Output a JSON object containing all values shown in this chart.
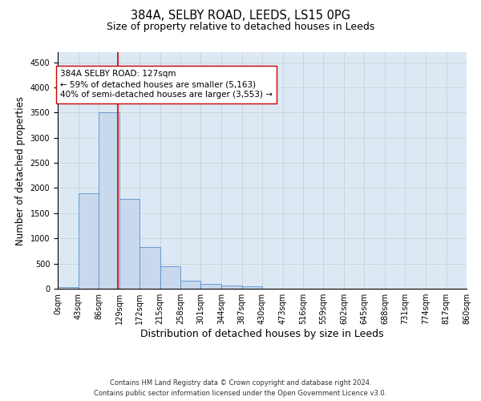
{
  "title_line1": "384A, SELBY ROAD, LEEDS, LS15 0PG",
  "title_line2": "Size of property relative to detached houses in Leeds",
  "xlabel": "Distribution of detached houses by size in Leeds",
  "ylabel": "Number of detached properties",
  "bin_edges": [
    0,
    43,
    86,
    129,
    172,
    215,
    258,
    301,
    344,
    387,
    430,
    473,
    516,
    559,
    602,
    645,
    688,
    731,
    774,
    817,
    860
  ],
  "bar_heights": [
    30,
    1900,
    3500,
    1780,
    830,
    450,
    165,
    100,
    65,
    50,
    0,
    0,
    0,
    0,
    0,
    0,
    0,
    0,
    0,
    0
  ],
  "bar_color": "#c8d9ed",
  "bar_edge_color": "#5b8fc9",
  "subject_size": 127,
  "subject_line_color": "#cc0000",
  "annotation_text": "384A SELBY ROAD: 127sqm\n← 59% of detached houses are smaller (5,163)\n40% of semi-detached houses are larger (3,553) →",
  "annotation_box_color": "#ffffff",
  "annotation_box_edge": "#cc0000",
  "ylim": [
    0,
    4700
  ],
  "yticks": [
    0,
    500,
    1000,
    1500,
    2000,
    2500,
    3000,
    3500,
    4000,
    4500
  ],
  "grid_color": "#cccccc",
  "background_color": "#ffffff",
  "axes_bg_color": "#dce9f5",
  "footer_line1": "Contains HM Land Registry data © Crown copyright and database right 2024.",
  "footer_line2": "Contains public sector information licensed under the Open Government Licence v3.0.",
  "title_fontsize": 10.5,
  "subtitle_fontsize": 9,
  "axis_label_fontsize": 8.5,
  "tick_fontsize": 7,
  "annotation_fontsize": 7.5,
  "footer_fontsize": 6
}
